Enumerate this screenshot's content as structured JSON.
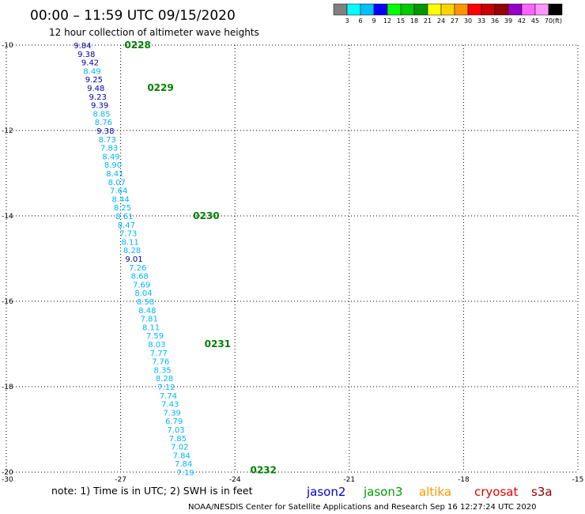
{
  "title": "00:00 – 11:59 UTC 09/15/2020",
  "subtitle": "12 hour collection of altimeter wave heights",
  "note": "note: 1) Time is in UTC; 2) SWH is in feet",
  "credit": "NOAA/NESDIS Center for Satellite Applications and Research    Sep 16 12:27:24 UTC 2020",
  "satellites": [
    {
      "name": "jason2",
      "color": "#0000cc"
    },
    {
      "name": "jason3",
      "color": "#00a000"
    },
    {
      "name": "altika",
      "color": "#ff9900"
    },
    {
      "name": "cryosat",
      "color": "#e00000"
    },
    {
      "name": "s3a",
      "color": "#880000"
    }
  ],
  "color_scale": {
    "unit": "(ft)",
    "colors": [
      "#808080",
      "#00ffff",
      "#00bfff",
      "#0000ff",
      "#00ff00",
      "#00c800",
      "#009600",
      "#ffff00",
      "#ffd200",
      "#ff9600",
      "#ff0000",
      "#c80000",
      "#960000",
      "#9600c8",
      "#ff64ff",
      "#ff96ff",
      "#000000"
    ],
    "labels": [
      "3",
      "6",
      "9",
      "12",
      "15",
      "18",
      "21",
      "24",
      "27",
      "30",
      "33",
      "36",
      "39",
      "42",
      "45",
      "70"
    ]
  },
  "chart_data": {
    "type": "scatter",
    "title": "00:00 – 11:59 UTC 09/15/2020",
    "xlim": [
      -30,
      -15
    ],
    "ylim": [
      -20,
      -10
    ],
    "xticks": [
      -30,
      -27,
      -24,
      -21,
      -18,
      -15
    ],
    "yticks": [
      -10,
      -12,
      -14,
      -16,
      -18,
      -20
    ],
    "grid": true,
    "series": [
      {
        "name": "jason3",
        "points": [
          {
            "x": -28.0,
            "y": -10.0,
            "v": "9.84",
            "c": "#0000a0"
          },
          {
            "x": -27.9,
            "y": -10.2,
            "v": "9.38",
            "c": "#0000a0"
          },
          {
            "x": -27.8,
            "y": -10.4,
            "v": "9.42",
            "c": "#0000a0"
          },
          {
            "x": -27.75,
            "y": -10.6,
            "v": "8.49",
            "c": "#00b4ff"
          },
          {
            "x": -27.7,
            "y": -10.8,
            "v": "9.25",
            "c": "#0000a0"
          },
          {
            "x": -27.65,
            "y": -11.0,
            "v": "9.48",
            "c": "#0000a0"
          },
          {
            "x": -27.6,
            "y": -11.2,
            "v": "9.23",
            "c": "#0000a0"
          },
          {
            "x": -27.55,
            "y": -11.4,
            "v": "9.39",
            "c": "#0000a0"
          },
          {
            "x": -27.5,
            "y": -11.6,
            "v": "8.85",
            "c": "#00b4ff"
          },
          {
            "x": -27.45,
            "y": -11.8,
            "v": "8.76",
            "c": "#00b4ff"
          },
          {
            "x": -27.4,
            "y": -12.0,
            "v": "9.38",
            "c": "#0000a0"
          },
          {
            "x": -27.35,
            "y": -12.2,
            "v": "8.73",
            "c": "#00b4ff"
          },
          {
            "x": -27.3,
            "y": -12.4,
            "v": "7.83",
            "c": "#00b4ff"
          },
          {
            "x": -27.25,
            "y": -12.6,
            "v": "8.49",
            "c": "#00b4ff"
          },
          {
            "x": -27.2,
            "y": -12.8,
            "v": "8.90",
            "c": "#00b4ff"
          },
          {
            "x": -27.15,
            "y": -13.0,
            "v": "8.41",
            "c": "#00b4ff"
          },
          {
            "x": -27.1,
            "y": -13.2,
            "v": "8.07",
            "c": "#00b4ff"
          },
          {
            "x": -27.05,
            "y": -13.4,
            "v": "7.64",
            "c": "#00b4ff"
          },
          {
            "x": -27.0,
            "y": -13.6,
            "v": "8.44",
            "c": "#00b4ff"
          },
          {
            "x": -26.95,
            "y": -13.8,
            "v": "8.25",
            "c": "#00b4ff"
          },
          {
            "x": -26.9,
            "y": -14.0,
            "v": "8.61",
            "c": "#00b4ff"
          },
          {
            "x": -26.85,
            "y": -14.2,
            "v": "8.47",
            "c": "#00b4ff"
          },
          {
            "x": -26.8,
            "y": -14.4,
            "v": "7.73",
            "c": "#00b4ff"
          },
          {
            "x": -26.75,
            "y": -14.6,
            "v": "8.11",
            "c": "#00b4ff"
          },
          {
            "x": -26.7,
            "y": -14.8,
            "v": "8.28",
            "c": "#00b4ff"
          },
          {
            "x": -26.65,
            "y": -15.0,
            "v": "9.01",
            "c": "#0000a0"
          },
          {
            "x": -26.55,
            "y": -15.2,
            "v": "7.26",
            "c": "#00b4ff"
          },
          {
            "x": -26.5,
            "y": -15.4,
            "v": "8.68",
            "c": "#00b4ff"
          },
          {
            "x": -26.45,
            "y": -15.6,
            "v": "7.69",
            "c": "#00b4ff"
          },
          {
            "x": -26.4,
            "y": -15.8,
            "v": "8.04",
            "c": "#00b4ff"
          },
          {
            "x": -26.35,
            "y": -16.0,
            "v": "8.58",
            "c": "#00b4ff"
          },
          {
            "x": -26.3,
            "y": -16.2,
            "v": "8.48",
            "c": "#00b4ff"
          },
          {
            "x": -26.25,
            "y": -16.4,
            "v": "7.81",
            "c": "#00b4ff"
          },
          {
            "x": -26.2,
            "y": -16.6,
            "v": "8.11",
            "c": "#00b4ff"
          },
          {
            "x": -26.1,
            "y": -16.8,
            "v": "7.59",
            "c": "#00b4ff"
          },
          {
            "x": -26.05,
            "y": -17.0,
            "v": "8.03",
            "c": "#00b4ff"
          },
          {
            "x": -26.0,
            "y": -17.2,
            "v": "7.77",
            "c": "#00b4ff"
          },
          {
            "x": -25.95,
            "y": -17.4,
            "v": "7.76",
            "c": "#00b4ff"
          },
          {
            "x": -25.9,
            "y": -17.6,
            "v": "8.35",
            "c": "#00b4ff"
          },
          {
            "x": -25.85,
            "y": -17.8,
            "v": "8.28",
            "c": "#00b4ff"
          },
          {
            "x": -25.8,
            "y": -18.0,
            "v": "7.12",
            "c": "#00b4ff"
          },
          {
            "x": -25.75,
            "y": -18.2,
            "v": "7.74",
            "c": "#00b4ff"
          },
          {
            "x": -25.7,
            "y": -18.4,
            "v": "7.43",
            "c": "#00b4ff"
          },
          {
            "x": -25.65,
            "y": -18.6,
            "v": "7.39",
            "c": "#00b4ff"
          },
          {
            "x": -25.6,
            "y": -18.8,
            "v": "6.79",
            "c": "#00b4ff"
          },
          {
            "x": -25.55,
            "y": -19.0,
            "v": "7.03",
            "c": "#00b4ff"
          },
          {
            "x": -25.5,
            "y": -19.2,
            "v": "7.85",
            "c": "#00b4ff"
          },
          {
            "x": -25.45,
            "y": -19.4,
            "v": "7.02",
            "c": "#00b4ff"
          },
          {
            "x": -25.4,
            "y": -19.6,
            "v": "7.84",
            "c": "#00b4ff"
          },
          {
            "x": -25.35,
            "y": -19.8,
            "v": "7.84",
            "c": "#00b4ff"
          },
          {
            "x": -25.3,
            "y": -20.0,
            "v": "7.19",
            "c": "#00b4ff"
          }
        ]
      }
    ],
    "time_labels": [
      {
        "x": -26.9,
        "y": -10.0,
        "t": "0228"
      },
      {
        "x": -26.3,
        "y": -11.0,
        "t": "0229"
      },
      {
        "x": -25.1,
        "y": -14.0,
        "t": "0230"
      },
      {
        "x": -24.8,
        "y": -17.0,
        "t": "0231"
      },
      {
        "x": -23.6,
        "y": -19.95,
        "t": "0232"
      }
    ]
  }
}
